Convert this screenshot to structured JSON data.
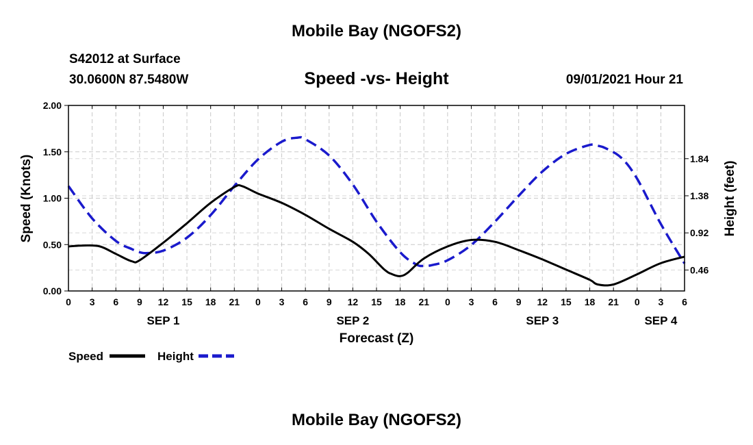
{
  "page": {
    "top_title": "Mobile Bay (NGOFS2)",
    "bottom_title": "Mobile Bay (NGOFS2)",
    "station": "S42012 at Surface",
    "coords": "30.0600N  87.5480W",
    "chart_title": "Speed -vs- Height",
    "datetime": "09/01/2021 Hour 21"
  },
  "chart_data": {
    "type": "line",
    "title": "Speed -vs- Height",
    "xlabel": "Forecast (Z)",
    "ylabel": "Speed (Knots)",
    "y2label": "Height (feet)",
    "x_hours_range": [
      0,
      78
    ],
    "x_tick_hours": [
      0,
      3,
      6,
      9,
      12,
      15,
      18,
      21,
      24,
      27,
      30,
      33,
      36,
      39,
      42,
      45,
      48,
      51,
      54,
      57,
      60,
      63,
      66,
      69,
      72,
      75,
      78
    ],
    "x_tick_labels": [
      "0",
      "3",
      "6",
      "9",
      "12",
      "15",
      "18",
      "21",
      "0",
      "3",
      "6",
      "9",
      "12",
      "15",
      "18",
      "21",
      "0",
      "3",
      "6",
      "9",
      "12",
      "15",
      "18",
      "21",
      "0",
      "3",
      "6"
    ],
    "date_labels": [
      {
        "text": "SEP 1",
        "hour": 12
      },
      {
        "text": "SEP 2",
        "hour": 36
      },
      {
        "text": "SEP 3",
        "hour": 60
      },
      {
        "text": "SEP 4",
        "hour": 75
      }
    ],
    "ylim": [
      0,
      2.0
    ],
    "y_ticks": [
      0,
      0.5,
      1.0,
      1.5,
      2.0
    ],
    "y_tick_labels": [
      "0.00",
      "0.50",
      "1.00",
      "1.50",
      "2.00"
    ],
    "y2lim": [
      0.2,
      2.5
    ],
    "y2_ticks": [
      0.46,
      0.92,
      1.38,
      1.84
    ],
    "y2_tick_labels": [
      "0.46",
      "0.92",
      "1.38",
      "1.84"
    ],
    "grid": true,
    "legend_position": "bottom-left",
    "series": [
      {
        "name": "Speed",
        "axis": "left",
        "color": "#000000",
        "style": "solid",
        "x": [
          0,
          2,
          4,
          6,
          8,
          9,
          12,
          15,
          18,
          21,
          22,
          24,
          27,
          30,
          33,
          36,
          38,
          40,
          41,
          42,
          43,
          45,
          48,
          51,
          54,
          57,
          60,
          63,
          66,
          67,
          69,
          72,
          75,
          78
        ],
        "values": [
          0.48,
          0.49,
          0.48,
          0.4,
          0.32,
          0.33,
          0.52,
          0.73,
          0.95,
          1.12,
          1.13,
          1.05,
          0.95,
          0.82,
          0.67,
          0.53,
          0.4,
          0.23,
          0.18,
          0.16,
          0.2,
          0.35,
          0.48,
          0.55,
          0.53,
          0.44,
          0.34,
          0.23,
          0.12,
          0.07,
          0.07,
          0.18,
          0.3,
          0.37
        ]
      },
      {
        "name": "Height",
        "axis": "right",
        "color": "#1a1acc",
        "style": "dashed",
        "x": [
          0,
          3,
          6,
          8,
          9,
          10,
          12,
          15,
          18,
          21,
          24,
          27,
          29,
          30,
          33,
          36,
          39,
          42,
          44,
          45,
          46,
          48,
          51,
          54,
          57,
          60,
          63,
          66,
          67,
          68,
          70,
          72,
          75,
          78
        ],
        "values": [
          1.5,
          1.1,
          0.82,
          0.72,
          0.68,
          0.67,
          0.7,
          0.86,
          1.14,
          1.5,
          1.83,
          2.05,
          2.1,
          2.08,
          1.88,
          1.52,
          1.06,
          0.68,
          0.53,
          0.51,
          0.52,
          0.58,
          0.77,
          1.06,
          1.38,
          1.68,
          1.9,
          2.01,
          2.0,
          1.97,
          1.85,
          1.59,
          1.03,
          0.54
        ]
      }
    ]
  }
}
